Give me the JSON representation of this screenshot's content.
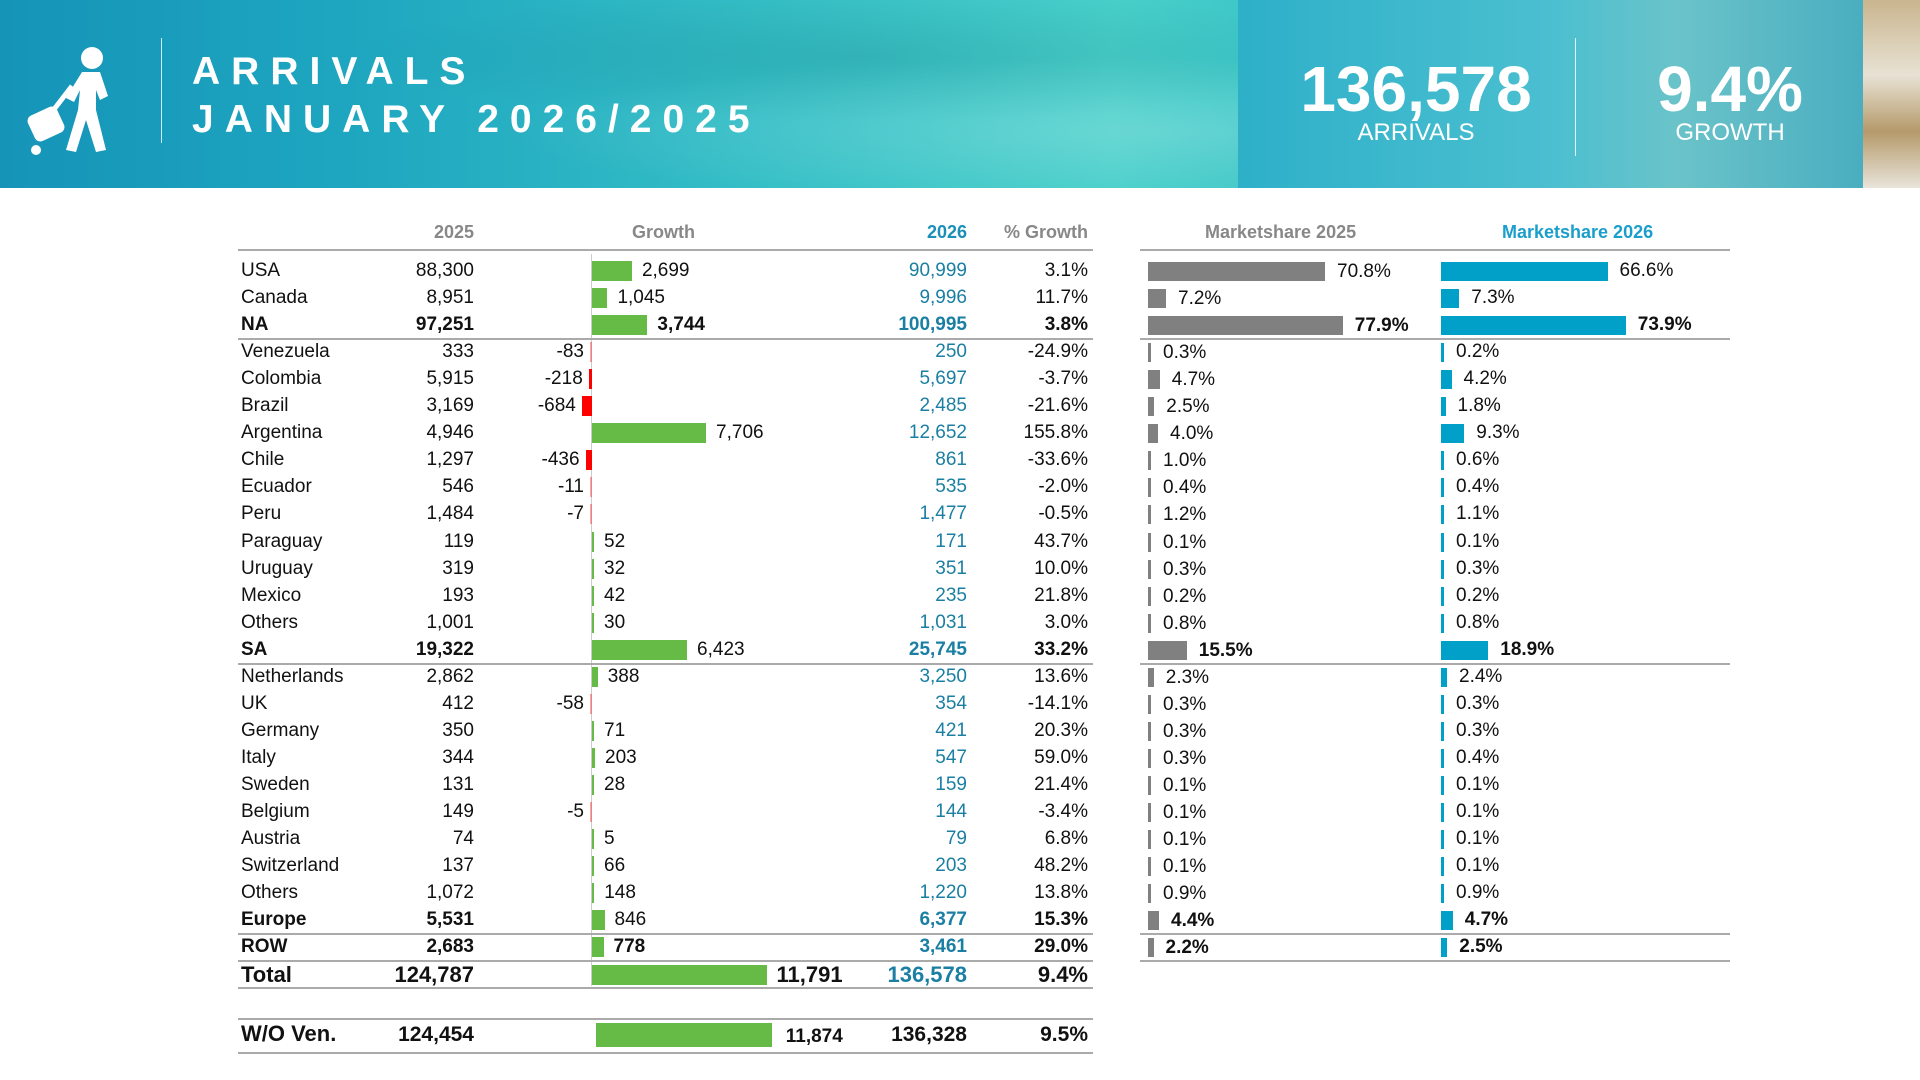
{
  "header": {
    "title_line1": "ARRIVALS",
    "title_line2": "JANUARY 2026/2025",
    "kpi_arrivals_value": "136,578",
    "kpi_arrivals_label": "ARRIVALS",
    "kpi_growth_value": "9.4%",
    "kpi_growth_label": "GROWTH",
    "logo_icon": "traveler-with-suitcase-icon"
  },
  "columns": {
    "y2025": "2025",
    "growth": "Growth",
    "y2026": "2026",
    "pct_growth": "% Growth",
    "ms2025": "Marketshare 2025",
    "ms2026": "Marketshare 2026"
  },
  "colors": {
    "positive": "#66bb46",
    "negative": "#ff0000",
    "ms2025": "#808080",
    "ms2026": "#00a0c8",
    "blue_text": "#1a7fa3"
  },
  "rows": [
    {
      "name": "USA",
      "y2025": "88,300",
      "growth": 2699,
      "growth_label": "2,699",
      "y2026": "90,999",
      "pct": "3.1%",
      "ms2025": 70.8,
      "ms2025_label": "70.8%",
      "ms2026": 66.6,
      "ms2026_label": "66.6%"
    },
    {
      "name": "Canada",
      "y2025": "8,951",
      "growth": 1045,
      "growth_label": "1,045",
      "y2026": "9,996",
      "pct": "11.7%",
      "ms2025": 7.2,
      "ms2025_label": "7.2%",
      "ms2026": 7.3,
      "ms2026_label": "7.3%"
    },
    {
      "name": "NA",
      "y2025": "97,251",
      "growth": 3744,
      "growth_label": "3,744",
      "y2026": "100,995",
      "pct": "3.8%",
      "ms2025": 77.9,
      "ms2025_label": "77.9%",
      "ms2026": 73.9,
      "ms2026_label": "73.9%",
      "bold": true,
      "sep": true
    },
    {
      "name": "Venezuela",
      "y2025": "333",
      "growth": -83,
      "growth_label": "-83",
      "y2026": "250",
      "pct": "-24.9%",
      "ms2025": 0.3,
      "ms2025_label": "0.3%",
      "ms2026": 0.2,
      "ms2026_label": "0.2%"
    },
    {
      "name": "Colombia",
      "y2025": "5,915",
      "growth": -218,
      "growth_label": "-218",
      "y2026": "5,697",
      "pct": "-3.7%",
      "ms2025": 4.7,
      "ms2025_label": "4.7%",
      "ms2026": 4.2,
      "ms2026_label": "4.2%"
    },
    {
      "name": "Brazil",
      "y2025": "3,169",
      "growth": -684,
      "growth_label": "-684",
      "y2026": "2,485",
      "pct": "-21.6%",
      "ms2025": 2.5,
      "ms2025_label": "2.5%",
      "ms2026": 1.8,
      "ms2026_label": "1.8%"
    },
    {
      "name": "Argentina",
      "y2025": "4,946",
      "growth": 7706,
      "growth_label": "7,706",
      "y2026": "12,652",
      "pct": "155.8%",
      "ms2025": 4.0,
      "ms2025_label": "4.0%",
      "ms2026": 9.3,
      "ms2026_label": "9.3%"
    },
    {
      "name": "Chile",
      "y2025": "1,297",
      "growth": -436,
      "growth_label": "-436",
      "y2026": "861",
      "pct": "-33.6%",
      "ms2025": 1.0,
      "ms2025_label": "1.0%",
      "ms2026": 0.6,
      "ms2026_label": "0.6%"
    },
    {
      "name": "Ecuador",
      "y2025": "546",
      "growth": -11,
      "growth_label": "-11",
      "y2026": "535",
      "pct": "-2.0%",
      "ms2025": 0.4,
      "ms2025_label": "0.4%",
      "ms2026": 0.4,
      "ms2026_label": "0.4%"
    },
    {
      "name": "Peru",
      "y2025": "1,484",
      "growth": -7,
      "growth_label": "-7",
      "y2026": "1,477",
      "pct": "-0.5%",
      "ms2025": 1.2,
      "ms2025_label": "1.2%",
      "ms2026": 1.1,
      "ms2026_label": "1.1%"
    },
    {
      "name": "Paraguay",
      "y2025": "119",
      "growth": 52,
      "growth_label": "52",
      "y2026": "171",
      "pct": "43.7%",
      "ms2025": 0.1,
      "ms2025_label": "0.1%",
      "ms2026": 0.1,
      "ms2026_label": "0.1%"
    },
    {
      "name": "Uruguay",
      "y2025": "319",
      "growth": 32,
      "growth_label": "32",
      "y2026": "351",
      "pct": "10.0%",
      "ms2025": 0.3,
      "ms2025_label": "0.3%",
      "ms2026": 0.3,
      "ms2026_label": "0.3%"
    },
    {
      "name": "Mexico",
      "y2025": "193",
      "growth": 42,
      "growth_label": "42",
      "y2026": "235",
      "pct": "21.8%",
      "ms2025": 0.2,
      "ms2025_label": "0.2%",
      "ms2026": 0.2,
      "ms2026_label": "0.2%"
    },
    {
      "name": "Others",
      "y2025": "1,001",
      "growth": 30,
      "growth_label": "30",
      "y2026": "1,031",
      "pct": "3.0%",
      "ms2025": 0.8,
      "ms2025_label": "0.8%",
      "ms2026": 0.8,
      "ms2026_label": "0.8%"
    },
    {
      "name": "SA",
      "y2025": "19,322",
      "growth": 6423,
      "growth_label": "6,423",
      "y2026": "25,745",
      "pct": "33.2%",
      "ms2025": 15.5,
      "ms2025_label": "15.5%",
      "ms2026": 18.9,
      "ms2026_label": "18.9%",
      "bold": true,
      "sep": true
    },
    {
      "name": "Netherlands",
      "y2025": "2,862",
      "growth": 388,
      "growth_label": "388",
      "y2026": "3,250",
      "pct": "13.6%",
      "ms2025": 2.3,
      "ms2025_label": "2.3%",
      "ms2026": 2.4,
      "ms2026_label": "2.4%"
    },
    {
      "name": "UK",
      "y2025": "412",
      "growth": -58,
      "growth_label": "-58",
      "y2026": "354",
      "pct": "-14.1%",
      "ms2025": 0.3,
      "ms2025_label": "0.3%",
      "ms2026": 0.3,
      "ms2026_label": "0.3%"
    },
    {
      "name": "Germany",
      "y2025": "350",
      "growth": 71,
      "growth_label": "71",
      "y2026": "421",
      "pct": "20.3%",
      "ms2025": 0.3,
      "ms2025_label": "0.3%",
      "ms2026": 0.3,
      "ms2026_label": "0.3%"
    },
    {
      "name": "Italy",
      "y2025": "344",
      "growth": 203,
      "growth_label": "203",
      "y2026": "547",
      "pct": "59.0%",
      "ms2025": 0.3,
      "ms2025_label": "0.3%",
      "ms2026": 0.4,
      "ms2026_label": "0.4%"
    },
    {
      "name": "Sweden",
      "y2025": "131",
      "growth": 28,
      "growth_label": "28",
      "y2026": "159",
      "pct": "21.4%",
      "ms2025": 0.1,
      "ms2025_label": "0.1%",
      "ms2026": 0.1,
      "ms2026_label": "0.1%"
    },
    {
      "name": "Belgium",
      "y2025": "149",
      "growth": -5,
      "growth_label": "-5",
      "y2026": "144",
      "pct": "-3.4%",
      "ms2025": 0.1,
      "ms2025_label": "0.1%",
      "ms2026": 0.1,
      "ms2026_label": "0.1%"
    },
    {
      "name": "Austria",
      "y2025": "74",
      "growth": 5,
      "growth_label": "5",
      "y2026": "79",
      "pct": "6.8%",
      "ms2025": 0.1,
      "ms2025_label": "0.1%",
      "ms2026": 0.1,
      "ms2026_label": "0.1%"
    },
    {
      "name": "Switzerland",
      "y2025": "137",
      "growth": 66,
      "growth_label": "66",
      "y2026": "203",
      "pct": "48.2%",
      "ms2025": 0.1,
      "ms2025_label": "0.1%",
      "ms2026": 0.1,
      "ms2026_label": "0.1%"
    },
    {
      "name": "Others",
      "y2025": "1,072",
      "growth": 148,
      "growth_label": "148",
      "y2026": "1,220",
      "pct": "13.8%",
      "ms2025": 0.9,
      "ms2025_label": "0.9%",
      "ms2026": 0.9,
      "ms2026_label": "0.9%"
    },
    {
      "name": "Europe",
      "y2025": "5,531",
      "growth": 846,
      "growth_label": "846",
      "y2026": "6,377",
      "pct": "15.3%",
      "ms2025": 4.4,
      "ms2025_label": "4.4%",
      "ms2026": 4.7,
      "ms2026_label": "4.7%",
      "bold": true,
      "sep": true
    },
    {
      "name": "ROW",
      "y2025": "2,683",
      "growth": 778,
      "growth_label": "778",
      "y2026": "3,461",
      "pct": "29.0%",
      "ms2025": 2.2,
      "ms2025_label": "2.2%",
      "ms2026": 2.5,
      "ms2026_label": "2.5%",
      "bold": true,
      "sep": true
    }
  ],
  "total": {
    "name": "Total",
    "y2025": "124,787",
    "growth": 11791,
    "growth_label": "11,791",
    "y2026": "136,578",
    "pct": "9.4%"
  },
  "wo_ven": {
    "name": "W/O Ven.",
    "y2025": "124,454",
    "growth": 11874,
    "growth_label": "11,874",
    "y2026": "136,328",
    "pct": "9.5%"
  }
}
